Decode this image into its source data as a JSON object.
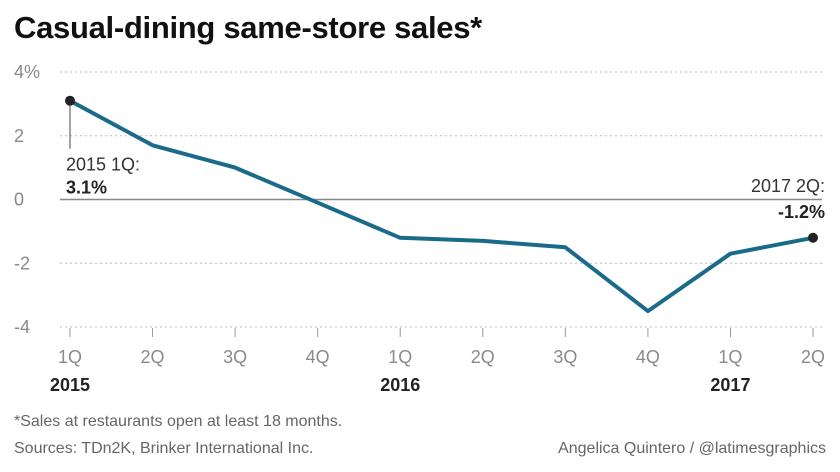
{
  "title": "Casual-dining same-store sales*",
  "footnote": "*Sales at restaurants open at least 18 months.",
  "sources": "Sources: TDn2K, Brinker International Inc.",
  "credit": "Angelica Quintero / @latimesgraphics",
  "colors": {
    "line": "#1a6b8a",
    "grid": "#bbbbbb",
    "zero": "#888888",
    "dot": "#222222"
  },
  "chart_data": {
    "type": "line",
    "title": "Casual-dining same-store sales*",
    "x": [
      "1Q",
      "2Q",
      "3Q",
      "4Q",
      "1Q",
      "2Q",
      "3Q",
      "4Q",
      "1Q",
      "2Q"
    ],
    "years": [
      {
        "label": "2015",
        "index": 0
      },
      {
        "label": "2016",
        "index": 4
      },
      {
        "label": "2017",
        "index": 8
      }
    ],
    "series": [
      {
        "values": [
          3.1,
          1.7,
          1.0,
          -0.1,
          -1.2,
          -1.3,
          -1.5,
          -3.5,
          -1.7,
          -1.2
        ]
      }
    ],
    "ylim": [
      -4,
      4
    ],
    "yticks": [
      {
        "value": 4,
        "label": "4%"
      },
      {
        "value": 2,
        "label": "2"
      },
      {
        "value": 0,
        "label": "0"
      },
      {
        "value": -2,
        "label": "-2"
      },
      {
        "value": -4,
        "label": "-4"
      }
    ],
    "grid": true,
    "annotations": [
      {
        "index": 0,
        "label": "2015 1Q:",
        "value": "3.1%"
      },
      {
        "index": 9,
        "label": "2017 2Q:",
        "value": "-1.2%"
      }
    ]
  }
}
